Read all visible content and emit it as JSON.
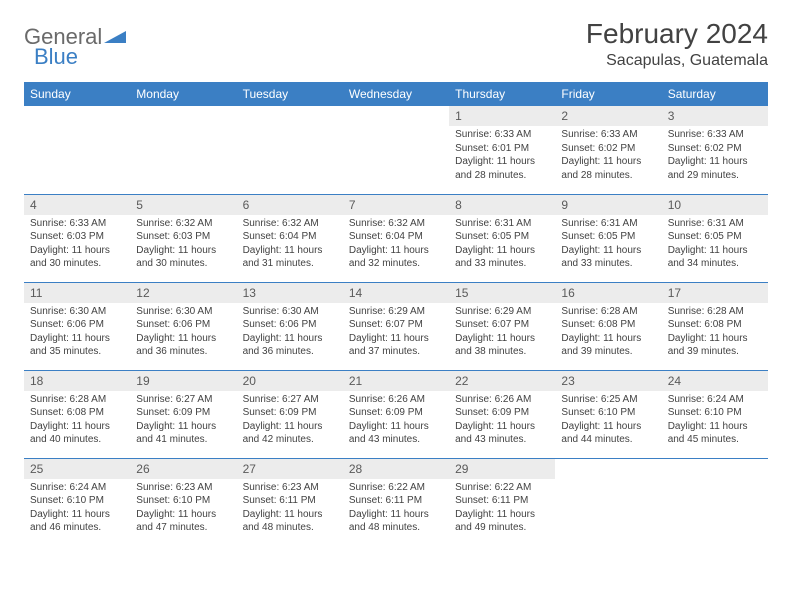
{
  "logo": {
    "text1": "General",
    "text2": "Blue"
  },
  "title": "February 2024",
  "location": "Sacapulas, Guatemala",
  "colors": {
    "header_bg": "#3b7fc4",
    "header_text": "#ffffff",
    "daynum_bg": "#ececec",
    "border": "#3b7fc4",
    "text": "#424242"
  },
  "weekdays": [
    "Sunday",
    "Monday",
    "Tuesday",
    "Wednesday",
    "Thursday",
    "Friday",
    "Saturday"
  ],
  "weeks": [
    [
      null,
      null,
      null,
      null,
      {
        "n": "1",
        "sr": "6:33 AM",
        "ss": "6:01 PM",
        "dl": "11 hours and 28 minutes."
      },
      {
        "n": "2",
        "sr": "6:33 AM",
        "ss": "6:02 PM",
        "dl": "11 hours and 28 minutes."
      },
      {
        "n": "3",
        "sr": "6:33 AM",
        "ss": "6:02 PM",
        "dl": "11 hours and 29 minutes."
      }
    ],
    [
      {
        "n": "4",
        "sr": "6:33 AM",
        "ss": "6:03 PM",
        "dl": "11 hours and 30 minutes."
      },
      {
        "n": "5",
        "sr": "6:32 AM",
        "ss": "6:03 PM",
        "dl": "11 hours and 30 minutes."
      },
      {
        "n": "6",
        "sr": "6:32 AM",
        "ss": "6:04 PM",
        "dl": "11 hours and 31 minutes."
      },
      {
        "n": "7",
        "sr": "6:32 AM",
        "ss": "6:04 PM",
        "dl": "11 hours and 32 minutes."
      },
      {
        "n": "8",
        "sr": "6:31 AM",
        "ss": "6:05 PM",
        "dl": "11 hours and 33 minutes."
      },
      {
        "n": "9",
        "sr": "6:31 AM",
        "ss": "6:05 PM",
        "dl": "11 hours and 33 minutes."
      },
      {
        "n": "10",
        "sr": "6:31 AM",
        "ss": "6:05 PM",
        "dl": "11 hours and 34 minutes."
      }
    ],
    [
      {
        "n": "11",
        "sr": "6:30 AM",
        "ss": "6:06 PM",
        "dl": "11 hours and 35 minutes."
      },
      {
        "n": "12",
        "sr": "6:30 AM",
        "ss": "6:06 PM",
        "dl": "11 hours and 36 minutes."
      },
      {
        "n": "13",
        "sr": "6:30 AM",
        "ss": "6:06 PM",
        "dl": "11 hours and 36 minutes."
      },
      {
        "n": "14",
        "sr": "6:29 AM",
        "ss": "6:07 PM",
        "dl": "11 hours and 37 minutes."
      },
      {
        "n": "15",
        "sr": "6:29 AM",
        "ss": "6:07 PM",
        "dl": "11 hours and 38 minutes."
      },
      {
        "n": "16",
        "sr": "6:28 AM",
        "ss": "6:08 PM",
        "dl": "11 hours and 39 minutes."
      },
      {
        "n": "17",
        "sr": "6:28 AM",
        "ss": "6:08 PM",
        "dl": "11 hours and 39 minutes."
      }
    ],
    [
      {
        "n": "18",
        "sr": "6:28 AM",
        "ss": "6:08 PM",
        "dl": "11 hours and 40 minutes."
      },
      {
        "n": "19",
        "sr": "6:27 AM",
        "ss": "6:09 PM",
        "dl": "11 hours and 41 minutes."
      },
      {
        "n": "20",
        "sr": "6:27 AM",
        "ss": "6:09 PM",
        "dl": "11 hours and 42 minutes."
      },
      {
        "n": "21",
        "sr": "6:26 AM",
        "ss": "6:09 PM",
        "dl": "11 hours and 43 minutes."
      },
      {
        "n": "22",
        "sr": "6:26 AM",
        "ss": "6:09 PM",
        "dl": "11 hours and 43 minutes."
      },
      {
        "n": "23",
        "sr": "6:25 AM",
        "ss": "6:10 PM",
        "dl": "11 hours and 44 minutes."
      },
      {
        "n": "24",
        "sr": "6:24 AM",
        "ss": "6:10 PM",
        "dl": "11 hours and 45 minutes."
      }
    ],
    [
      {
        "n": "25",
        "sr": "6:24 AM",
        "ss": "6:10 PM",
        "dl": "11 hours and 46 minutes."
      },
      {
        "n": "26",
        "sr": "6:23 AM",
        "ss": "6:10 PM",
        "dl": "11 hours and 47 minutes."
      },
      {
        "n": "27",
        "sr": "6:23 AM",
        "ss": "6:11 PM",
        "dl": "11 hours and 48 minutes."
      },
      {
        "n": "28",
        "sr": "6:22 AM",
        "ss": "6:11 PM",
        "dl": "11 hours and 48 minutes."
      },
      {
        "n": "29",
        "sr": "6:22 AM",
        "ss": "6:11 PM",
        "dl": "11 hours and 49 minutes."
      },
      null,
      null
    ]
  ],
  "labels": {
    "sunrise": "Sunrise:",
    "sunset": "Sunset:",
    "daylight": "Daylight:"
  }
}
